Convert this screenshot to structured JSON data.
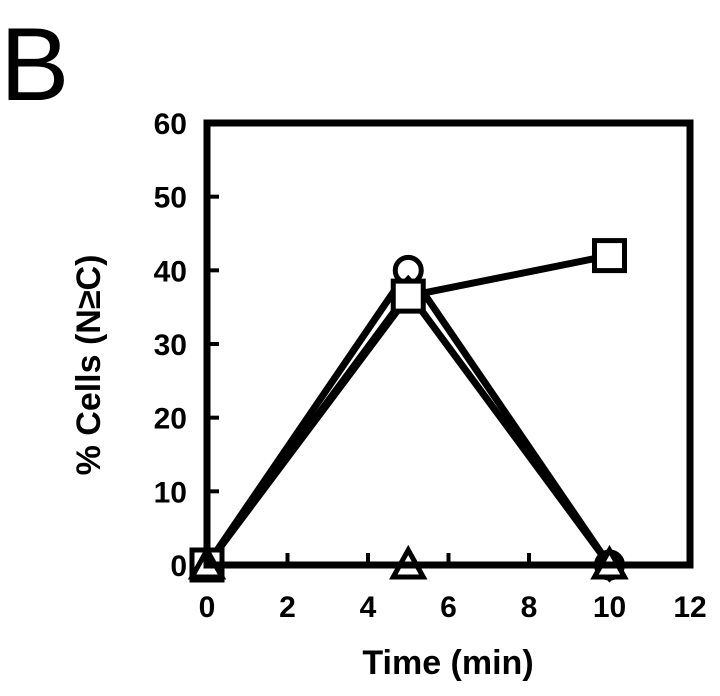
{
  "panel_label": "B",
  "chart_data": {
    "type": "line",
    "title": "",
    "xlabel": "Time (min)",
    "ylabel": "% Cells (N≥C)",
    "xlim": [
      0,
      12
    ],
    "ylim": [
      0,
      60
    ],
    "xticks": [
      0,
      2,
      4,
      6,
      8,
      10,
      12
    ],
    "yticks": [
      0,
      10,
      20,
      30,
      40,
      50,
      60
    ],
    "x_tick_labels": [
      "0",
      "2",
      "4",
      "6",
      "8",
      "10",
      "12"
    ],
    "y_tick_labels": [
      "0",
      "10",
      "20",
      "30",
      "40",
      "50",
      "60"
    ],
    "grid": false,
    "legend": "none",
    "series": [
      {
        "marker": "circle",
        "x": [
          0,
          5,
          10
        ],
        "y": [
          0,
          40,
          0
        ]
      },
      {
        "marker": "diamond",
        "x": [
          0,
          5,
          10
        ],
        "y": [
          0,
          37,
          0
        ]
      },
      {
        "marker": "square",
        "x": [
          0,
          5,
          10
        ],
        "y": [
          0,
          36.5,
          42
        ]
      },
      {
        "marker": "triangle",
        "x": [
          0,
          5,
          10
        ],
        "y": [
          0,
          0,
          0
        ]
      }
    ]
  }
}
